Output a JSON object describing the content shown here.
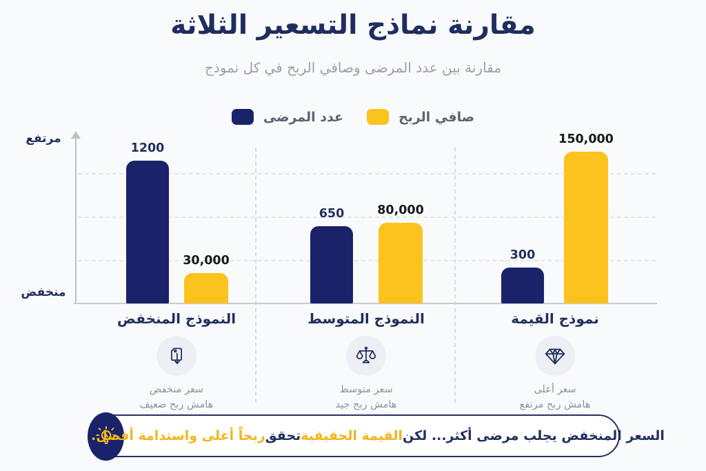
{
  "page": {
    "background": "#f9fafb"
  },
  "header": {
    "title": "مقارنة نماذج التسعير الثلاثة",
    "subtitle": "مقارنة بين عدد المرضى وصافي الربح في كل نموذج"
  },
  "legend": {
    "items": [
      {
        "label": "عدد المرضى",
        "color": "#1a2369"
      },
      {
        "label": "صافي الربح",
        "color": "#fcc21d"
      }
    ]
  },
  "chart_data": {
    "type": "bar",
    "direction": "rtl",
    "title": "مقارنة نماذج التسعير الثلاثة",
    "categories": [
      "النموذج المنخفض",
      "النموذج المتوسط",
      "نموذج القيمة"
    ],
    "series": [
      {
        "name": "عدد المرضى",
        "color": "#1a2369",
        "values": [
          1200,
          650,
          300
        ]
      },
      {
        "name": "صافي الربح",
        "color": "#fcc21d",
        "values": [
          30000,
          80000,
          150000
        ]
      }
    ],
    "value_labels": [
      [
        "1200",
        "650",
        "300"
      ],
      [
        "30,000",
        "80,000",
        "150,000"
      ]
    ],
    "y_axis": {
      "top_label": "مرتفع",
      "bottom_label": "منخفض",
      "type": "qualitative"
    },
    "grid": "horizontal-dashed",
    "legend_position": "top-center"
  },
  "models": [
    {
      "title": "النموذج المنخفض",
      "icon": "price-tag-down-icon",
      "desc_line1": "سعر منخفض",
      "desc_line2": "هامش ربح ضعيف"
    },
    {
      "title": "النموذج المتوسط",
      "icon": "scales-icon",
      "desc_line1": "سعر متوسط",
      "desc_line2": "هامش ربح جيد"
    },
    {
      "title": "نموذج القيمة",
      "icon": "diamond-icon",
      "desc_line1": "سعر أعلى",
      "desc_line2": "هامش ربح مرتفع"
    }
  ],
  "footer": {
    "icon": "lightbulb-icon",
    "segments": [
      {
        "text": "السعر المنخفض يجلب مرضى أكثر... لكن ",
        "color": "#22305e"
      },
      {
        "text": "القيمة الحقيقية",
        "color": "#f2b51c"
      },
      {
        "text": " تحقق ",
        "color": "#22305e"
      },
      {
        "text": "ربحاً أعلى واستدامة أفضل.",
        "color": "#f2b51c"
      }
    ]
  },
  "colors": {
    "navy": "#1a2369",
    "gold": "#fcc21d",
    "text_navy": "#22305e",
    "text_gray": "#8d929c"
  }
}
